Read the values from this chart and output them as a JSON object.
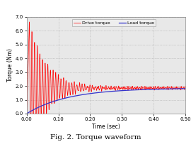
{
  "title": "Fig. 2. Torque waveform",
  "xlabel": "Time (sec)",
  "ylabel": "Torque (Nm)",
  "xlim": [
    0.0,
    0.5
  ],
  "ylim": [
    0.0,
    7.0
  ],
  "xticks": [
    0.0,
    0.1,
    0.2,
    0.3,
    0.4,
    0.5
  ],
  "yticks": [
    0.0,
    1.0,
    2.0,
    3.0,
    4.0,
    5.0,
    6.0,
    7.0
  ],
  "drive_color": "#ff0000",
  "load_color": "#3333cc",
  "background_color": "#e8e8e8",
  "legend_drive": "Drive torque",
  "legend_load": "Load torque",
  "grid_color": "#aaaaaa",
  "grid_style": ":",
  "steady_state": 1.85,
  "peak": 6.5,
  "omega_hz": 120,
  "decay_fast": 18,
  "decay_slow": 4,
  "tau_load": 0.13
}
